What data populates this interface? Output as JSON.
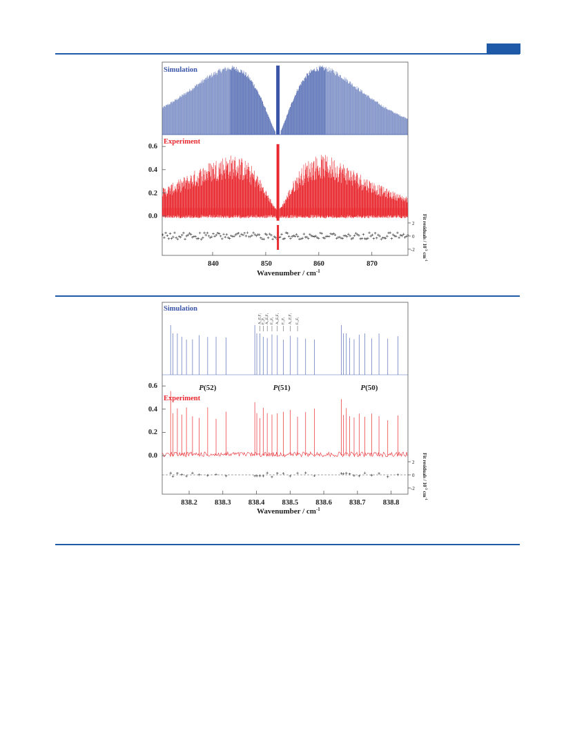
{
  "colors": {
    "accent": "#1e5aa8",
    "simulation": "#3a55a8",
    "experiment": "#e8282e",
    "residuals": "#333333"
  },
  "chart_data": [
    {
      "type": "line",
      "xlabel": "Wavenumber / cm",
      "xlabel_sup": "-1",
      "ylabel_right": "Fit residuals / 10",
      "ylabel_right_sup": "-3",
      "ylabel_right_unit": "cm",
      "ylabel_right_unit_sup": "-1",
      "xlim": [
        830.5,
        876.8
      ],
      "x_ticks": [
        840,
        850,
        860,
        870
      ],
      "ylim": [
        -0.06,
        0.68
      ],
      "y_ticks": [
        "0.0",
        "0.2",
        "0.4",
        "0.6"
      ],
      "y_tick_values": [
        0,
        0.2,
        0.4,
        0.6
      ],
      "residual_ticks": [
        "2",
        "0",
        "-2"
      ],
      "residual_tick_values": [
        2,
        0,
        -2
      ],
      "series": [
        {
          "name": "Simulation",
          "center": 852.3,
          "p_branch_peak_x": 843.5,
          "r_branch_peak_x": 860.5
        },
        {
          "name": "Experiment",
          "center": 852.3,
          "peak_y": 0.62,
          "baseline_y": 0.05
        }
      ]
    },
    {
      "type": "line",
      "xlabel": "Wavenumber / cm",
      "xlabel_sup": "-1",
      "ylabel_right": "Fit residuals / 10",
      "ylabel_right_sup": "-3",
      "ylabel_right_unit": "cm",
      "ylabel_right_unit_sup": "-1",
      "xlim": [
        838.12,
        838.85
      ],
      "x_ticks": [
        "838.2",
        "838.3",
        "838.4",
        "838.5",
        "838.6",
        "838.7",
        "838.8"
      ],
      "x_tick_values": [
        838.2,
        838.3,
        838.4,
        838.5,
        838.6,
        838.7,
        838.8
      ],
      "ylim": [
        -0.05,
        0.65
      ],
      "y_ticks": [
        "0.0",
        "0.2",
        "0.4",
        "0.6"
      ],
      "y_tick_values": [
        0,
        0.2,
        0.4,
        0.6
      ],
      "residual_ticks": [
        "2",
        "0",
        "-2"
      ],
      "residual_tick_values": [
        2,
        0,
        -2
      ],
      "branch_labels": [
        {
          "italic": "P",
          "rest": "(52)",
          "x": 838.255
        },
        {
          "italic": "P",
          "rest": "(51)",
          "x": 838.475
        },
        {
          "italic": "P",
          "rest": "(50)",
          "x": 838.735
        }
      ],
      "transition_labels": [
        "A₁₂E₁F₁",
        "F₁₂F₁",
        "A₂₁E₁F₁",
        "F₁₂F₁",
        "A₁₂E₁F₁",
        "F₁₂F₁",
        "A₂₁E₁F₁",
        "F₁₂F₁"
      ],
      "series": [
        {
          "name": "Simulation",
          "peaks_x_P52": [
            838.145,
            838.152,
            838.165,
            838.178,
            838.192,
            838.21,
            838.23,
            838.255,
            838.28,
            838.31
          ],
          "peaks_x_P51": [
            838.395,
            838.401,
            838.41,
            838.42,
            838.432,
            838.446,
            838.462,
            838.48,
            838.5,
            838.522,
            838.546,
            838.572
          ],
          "peaks_x_P50": [
            838.652,
            838.658,
            838.667,
            838.677,
            838.69,
            838.705,
            838.722,
            838.742,
            838.764,
            838.79,
            838.82
          ]
        },
        {
          "name": "Experiment",
          "peak_y": 0.6,
          "baseline_y": 0.01
        }
      ]
    }
  ]
}
